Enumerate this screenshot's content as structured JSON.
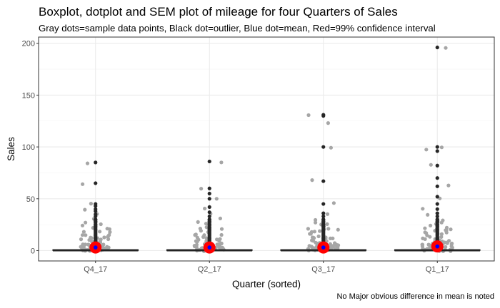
{
  "chart_data": {
    "type": "box",
    "title": "Boxplot, dotplot and SEM plot of mileage for four Quarters of Sales",
    "subtitle": "Gray dots=sample data points, Black dot=outlier, Blue dot=mean, Red=99% confidence interval",
    "caption": "No Major obvious difference in mean is noted",
    "xlabel": "Quarter (sorted)",
    "ylabel": "Sales",
    "ylim": [
      -10,
      206
    ],
    "y_ticks": [
      0,
      50,
      100,
      150,
      200
    ],
    "grid": true,
    "categories": [
      "Q4_17",
      "Q2_17",
      "Q3_17",
      "Q1_17"
    ],
    "series": [
      {
        "category": "Q4_17",
        "box": {
          "min": 0,
          "q1": 0,
          "median": 0,
          "q3": 1,
          "max": 2
        },
        "mean": 3,
        "ci99": [
          1,
          5
        ],
        "outliers": [
          5,
          8,
          10,
          12,
          15,
          18,
          20,
          23,
          25,
          28,
          30,
          33,
          35,
          38,
          40,
          43,
          45,
          65,
          85
        ],
        "sample_points": [
          1,
          2,
          3,
          4,
          5,
          6,
          7,
          8,
          10,
          12,
          14,
          16,
          18,
          20,
          22,
          25,
          28,
          30,
          35,
          40,
          45,
          65,
          85
        ]
      },
      {
        "category": "Q2_17",
        "box": {
          "min": 0,
          "q1": 0,
          "median": 0,
          "q3": 1,
          "max": 2
        },
        "mean": 3,
        "ci99": [
          1,
          5
        ],
        "outliers": [
          5,
          8,
          10,
          12,
          15,
          18,
          20,
          22,
          25,
          28,
          30,
          33,
          37,
          42,
          50,
          55,
          60,
          86
        ],
        "sample_points": [
          1,
          2,
          3,
          4,
          5,
          6,
          7,
          8,
          10,
          12,
          14,
          16,
          18,
          20,
          22,
          25,
          28,
          30,
          35,
          40,
          50,
          60,
          86
        ]
      },
      {
        "category": "Q3_17",
        "box": {
          "min": 0,
          "q1": 0,
          "median": 0,
          "q3": 1,
          "max": 2
        },
        "mean": 3,
        "ci99": [
          1,
          5
        ],
        "outliers": [
          5,
          8,
          10,
          12,
          15,
          18,
          20,
          23,
          25,
          28,
          30,
          33,
          36,
          45,
          67,
          100,
          130,
          131
        ],
        "sample_points": [
          1,
          2,
          3,
          4,
          5,
          6,
          7,
          8,
          10,
          12,
          14,
          16,
          18,
          20,
          22,
          25,
          28,
          30,
          35,
          45,
          67,
          100,
          122,
          130
        ]
      },
      {
        "category": "Q1_17",
        "box": {
          "min": 0,
          "q1": 0,
          "median": 0,
          "q3": 1,
          "max": 2
        },
        "mean": 4,
        "ci99": [
          1,
          6
        ],
        "outliers": [
          5,
          8,
          10,
          12,
          15,
          18,
          20,
          23,
          25,
          28,
          30,
          33,
          36,
          40,
          45,
          52,
          62,
          70,
          82,
          96,
          100,
          196
        ],
        "sample_points": [
          1,
          2,
          3,
          4,
          5,
          6,
          7,
          8,
          10,
          12,
          14,
          16,
          18,
          20,
          22,
          25,
          28,
          30,
          35,
          40,
          50,
          63,
          82,
          97,
          100,
          196
        ]
      }
    ],
    "colors": {
      "sample": "#a6a6a6",
      "outlier": "#262626",
      "mean": "#0000ff",
      "ci": "#ff0000",
      "grid_major": "#ebebeb",
      "grid_minor": "#f5f5f5",
      "panel_border": "#333333"
    }
  }
}
